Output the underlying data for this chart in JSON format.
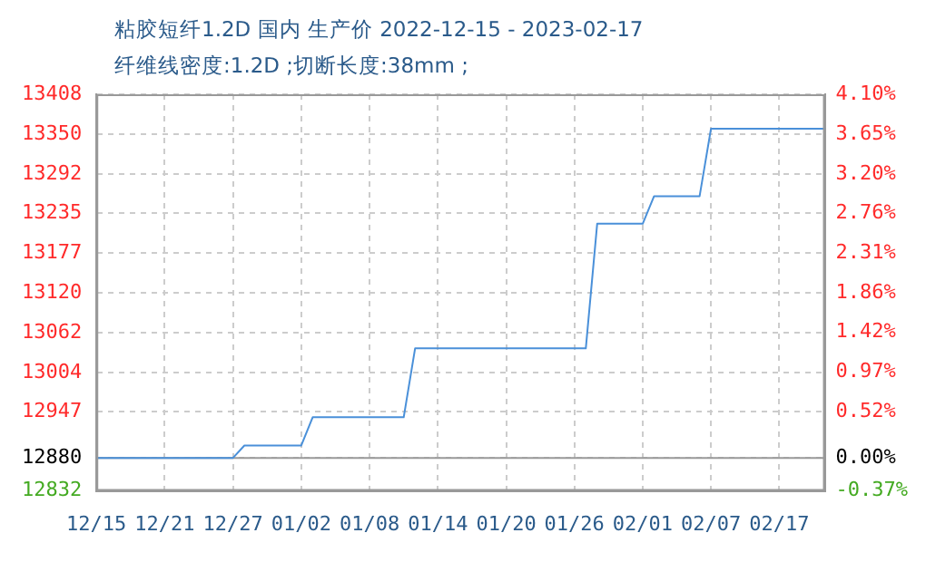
{
  "chart_data": {
    "type": "line",
    "title": "粘胶短纤1.2D 国内 生产价 2022-12-15 - 2023-02-17",
    "subtitle": "纤维线密度:1.2D ;切断长度:38mm ;",
    "categories": [
      "12/15",
      null,
      null,
      null,
      null,
      null,
      "12/21",
      null,
      null,
      null,
      null,
      null,
      "12/27",
      null,
      null,
      null,
      null,
      null,
      "01/02",
      null,
      null,
      null,
      null,
      null,
      "01/08",
      null,
      null,
      null,
      null,
      null,
      "01/14",
      null,
      null,
      null,
      null,
      null,
      "01/20",
      null,
      null,
      null,
      null,
      null,
      "01/26",
      null,
      null,
      null,
      null,
      null,
      "02/01",
      null,
      null,
      null,
      null,
      null,
      "02/07",
      null,
      null,
      null,
      null,
      null,
      "02/17",
      null,
      null,
      null,
      null
    ],
    "series": [
      {
        "color": "#4a90d9",
        "values": [
          12880,
          12880,
          12880,
          12880,
          12880,
          12880,
          12880,
          12880,
          12880,
          12880,
          12880,
          12880,
          12880,
          12898,
          12898,
          12898,
          12898,
          12898,
          12898,
          12939,
          12939,
          12939,
          12939,
          12939,
          12939,
          12939,
          12939,
          12939,
          13039,
          13039,
          13039,
          13039,
          13039,
          13039,
          13039,
          13039,
          13039,
          13039,
          13039,
          13039,
          13039,
          13039,
          13039,
          13039,
          13220,
          13220,
          13220,
          13220,
          13220,
          13260,
          13260,
          13260,
          13260,
          13260,
          13358,
          13358,
          13358,
          13358,
          13358,
          13358,
          13358,
          13358,
          13358,
          13358,
          13358
        ]
      }
    ],
    "ylim": [
      12832,
      13408
    ],
    "yticks": [
      12832,
      12880,
      12947,
      13004,
      13062,
      13120,
      13177,
      13235,
      13292,
      13350,
      13408
    ],
    "y2lim": [
      -0.37,
      4.1
    ],
    "y2ticks": [
      {
        "value": -0.37,
        "label": "-0.37%"
      },
      {
        "value": 0,
        "label": "0.00%"
      },
      {
        "value": 0.52,
        "label": "0.52%"
      },
      {
        "value": 0.97,
        "label": "0.97%"
      },
      {
        "value": 1.42,
        "label": "1.42%"
      },
      {
        "value": 1.86,
        "label": "1.86%"
      },
      {
        "value": 2.31,
        "label": "2.31%"
      },
      {
        "value": 2.76,
        "label": "2.76%"
      },
      {
        "value": 3.2,
        "label": "3.20%"
      },
      {
        "value": 3.65,
        "label": "3.65%"
      },
      {
        "value": 4.1,
        "label": "4.10%"
      }
    ],
    "ref_lines": [
      {
        "axis": "y",
        "value": 12880,
        "color": "#999999"
      }
    ],
    "grid": true,
    "legend": false,
    "marker": "none",
    "line_style": "solid"
  }
}
